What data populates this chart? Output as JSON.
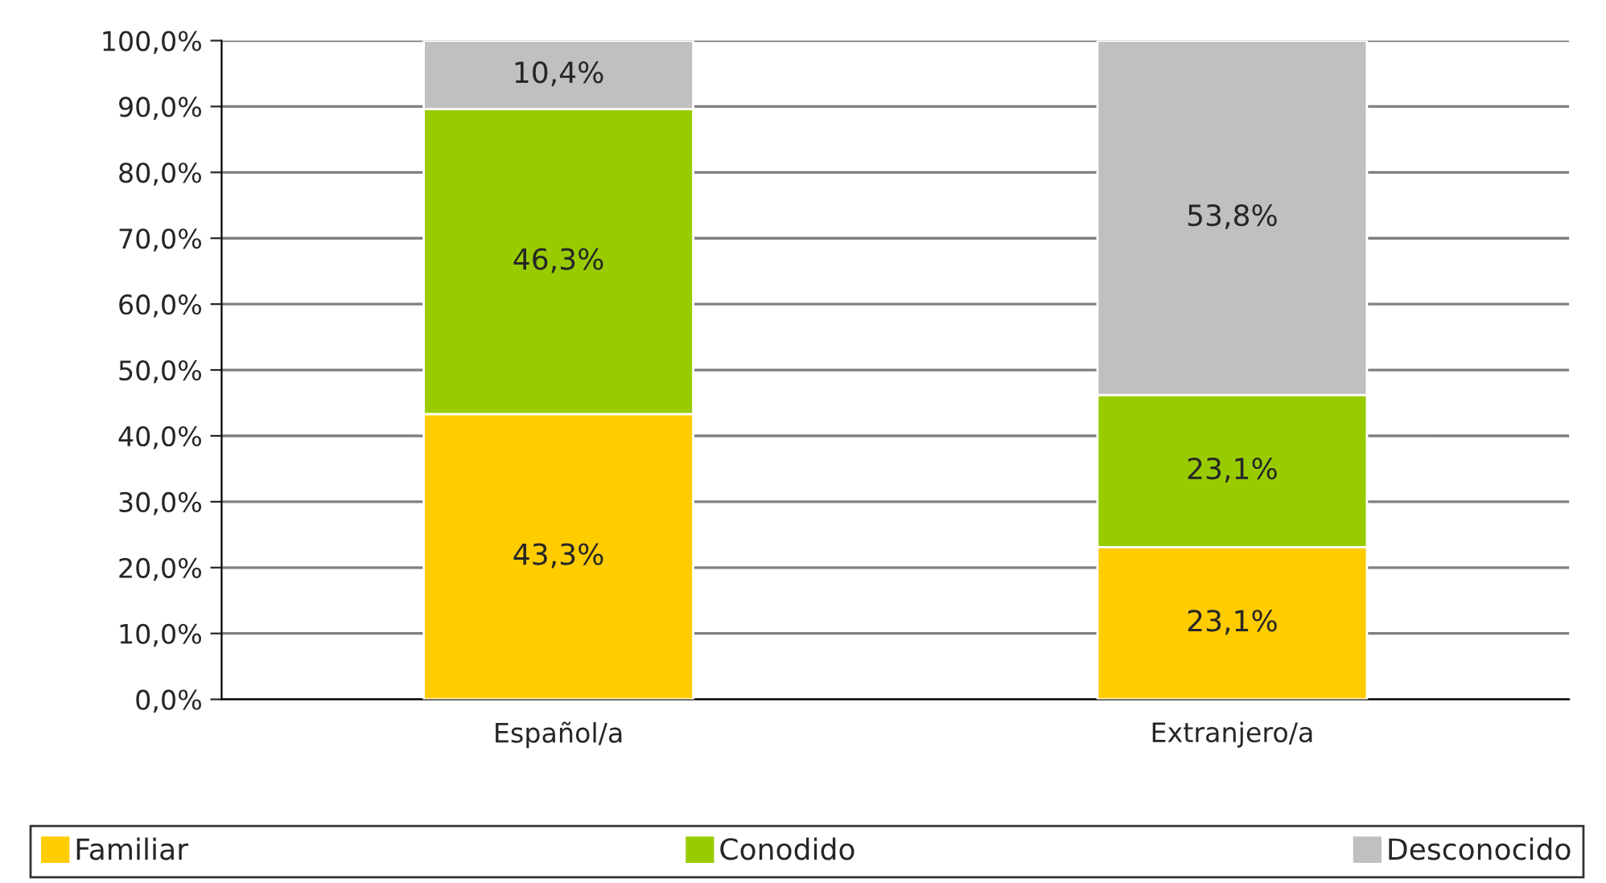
{
  "chart_data": {
    "type": "bar",
    "stacked": true,
    "categories": [
      "Español/a",
      "Extranjero/a"
    ],
    "series": [
      {
        "name": "Familiar",
        "color": "#ffcc00",
        "values": [
          43.3,
          23.1
        ],
        "value_labels": [
          "43,3%",
          "23,1%"
        ]
      },
      {
        "name": "Conodido",
        "color": "#99cc00",
        "values": [
          46.3,
          23.1
        ],
        "value_labels": [
          "46,3%",
          "23,1%"
        ]
      },
      {
        "name": "Desconocido",
        "color": "#c0c0c0",
        "values": [
          10.4,
          53.8
        ],
        "value_labels": [
          "10,4%",
          "53,8%"
        ]
      }
    ],
    "ylim": [
      0,
      100
    ],
    "yticks": [
      {
        "value": 0,
        "label": "0,0%"
      },
      {
        "value": 10,
        "label": "10,0%"
      },
      {
        "value": 20,
        "label": "20,0%"
      },
      {
        "value": 30,
        "label": "30,0%"
      },
      {
        "value": 40,
        "label": "40,0%"
      },
      {
        "value": 50,
        "label": "50,0%"
      },
      {
        "value": 60,
        "label": "60,0%"
      },
      {
        "value": 70,
        "label": "70,0%"
      },
      {
        "value": 80,
        "label": "80,0%"
      },
      {
        "value": 90,
        "label": "90,0%"
      },
      {
        "value": 100,
        "label": "100,0%"
      }
    ],
    "grid": "y",
    "legend": "bottom"
  }
}
